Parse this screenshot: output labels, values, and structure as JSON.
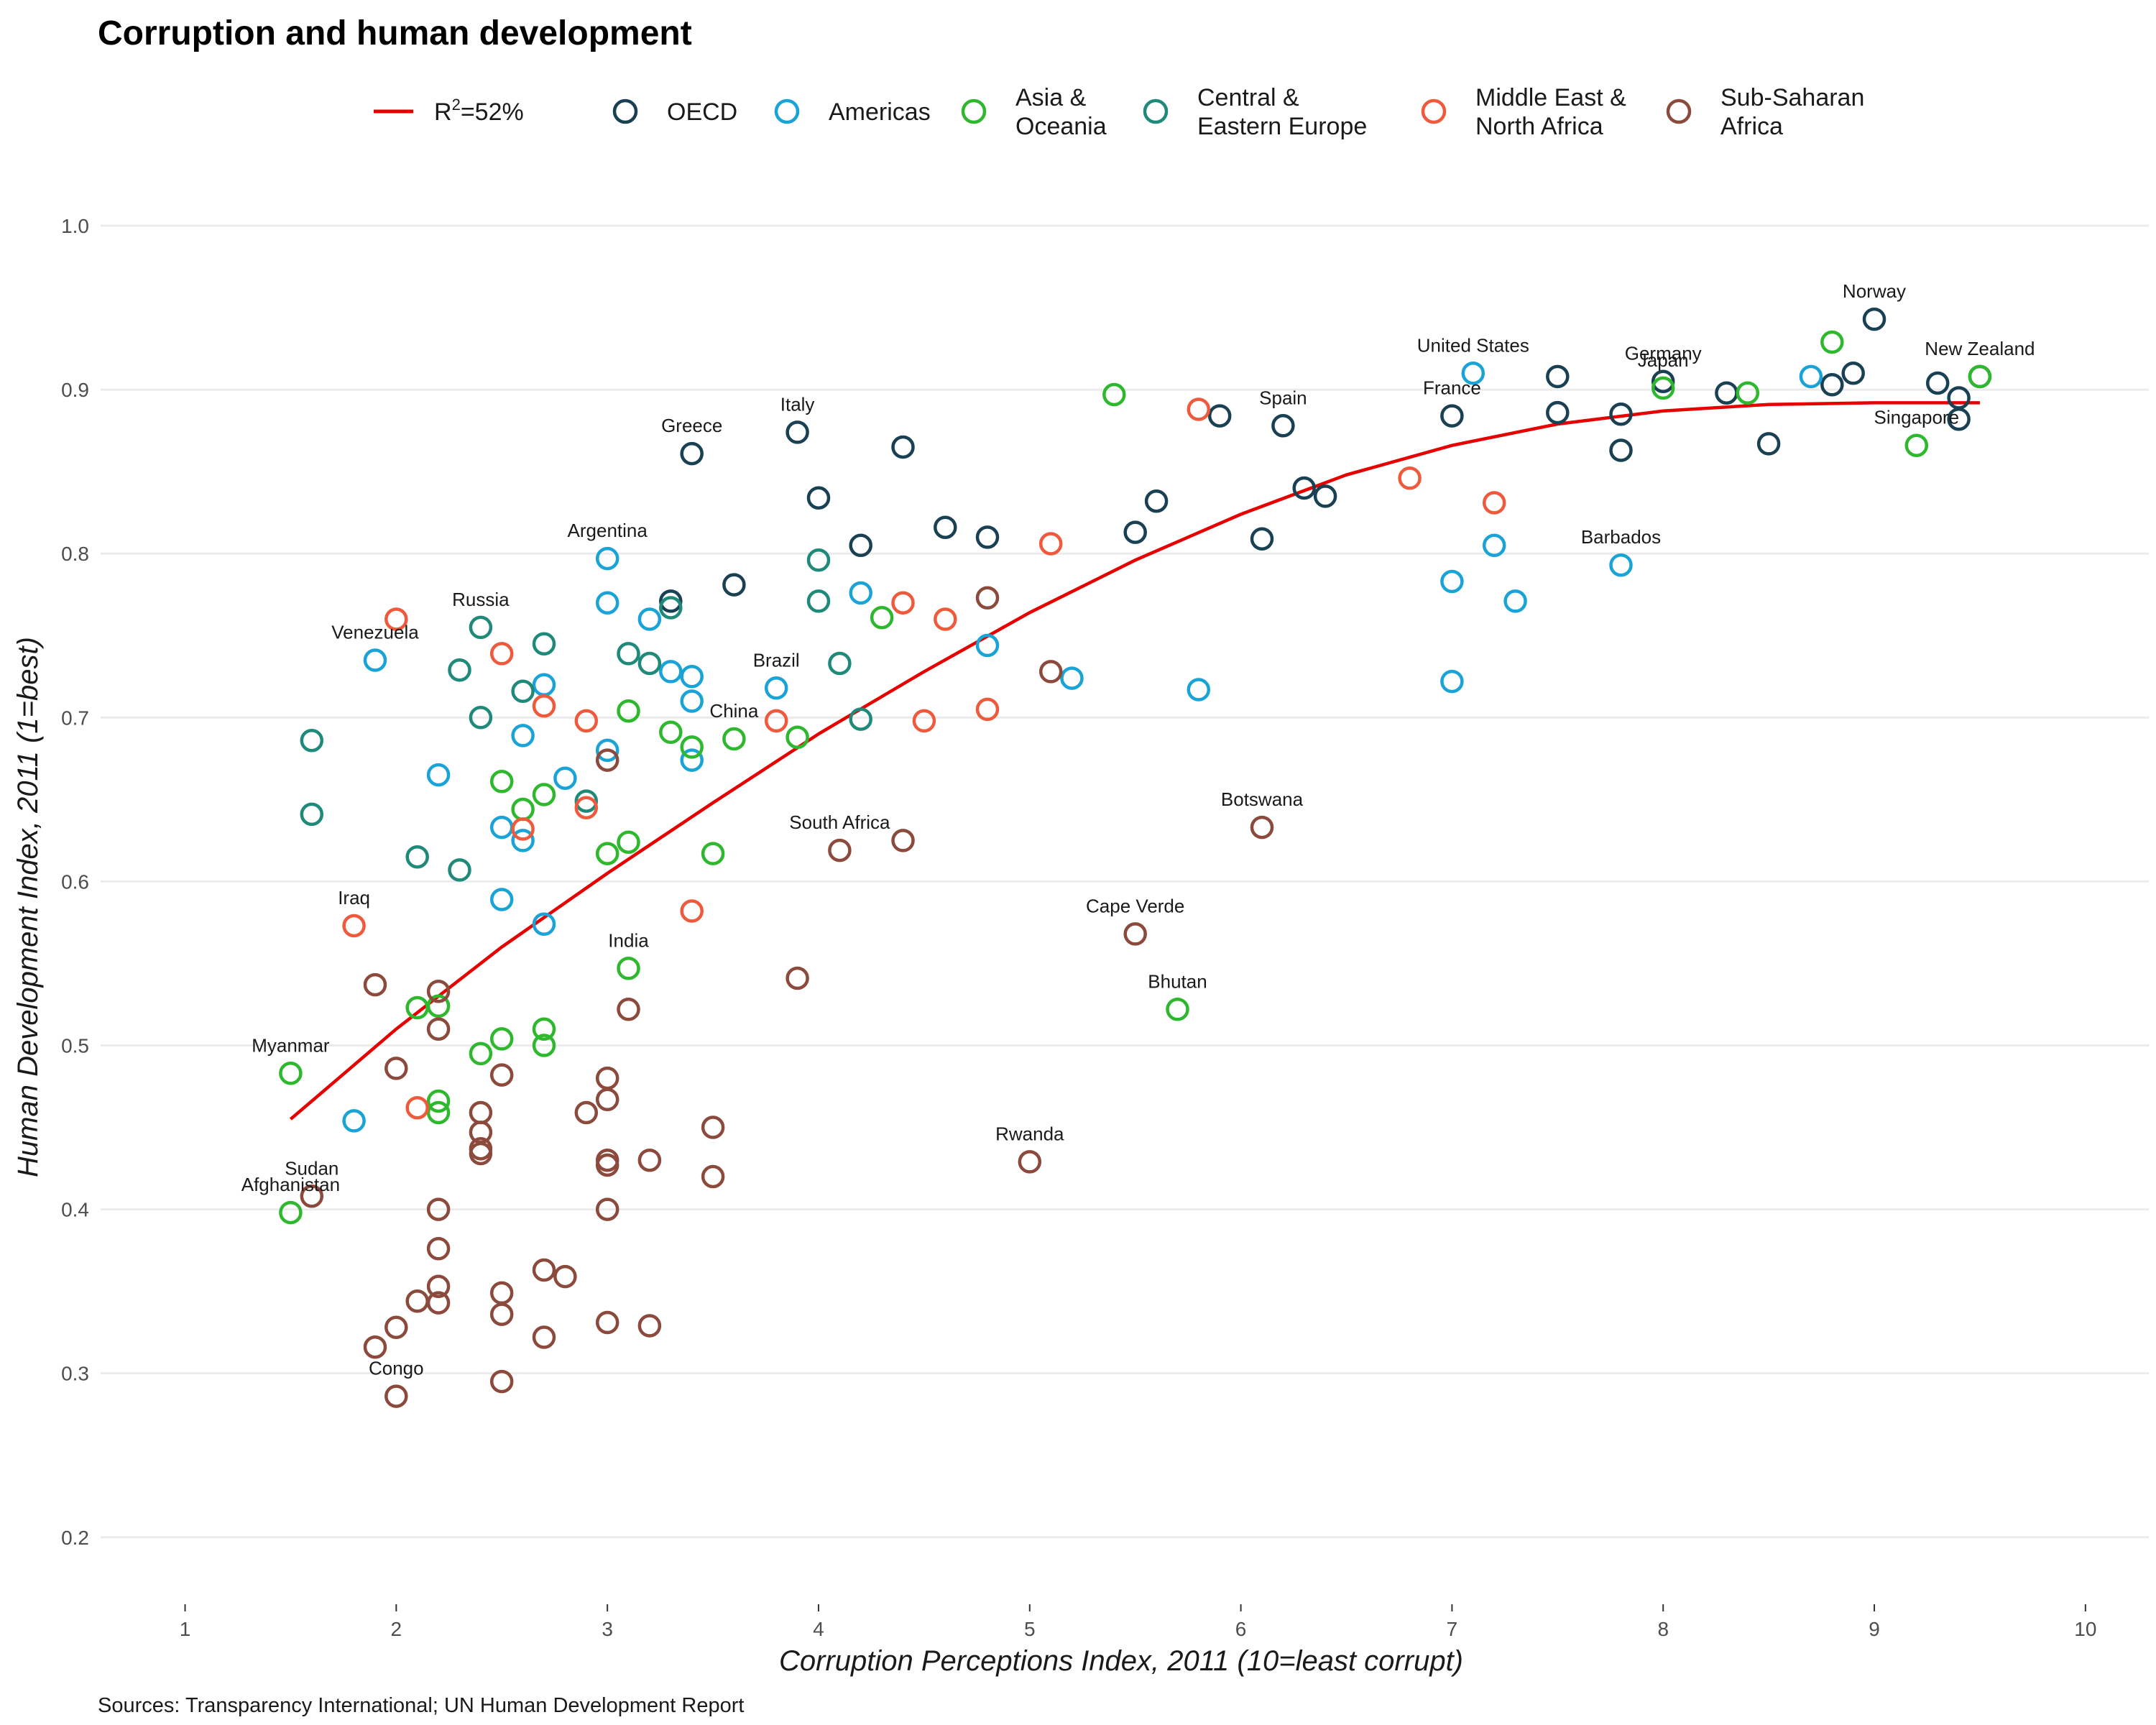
{
  "chart_data": {
    "type": "scatter",
    "title": "Corruption and human development",
    "xlabel": "Corruption Perceptions Index, 2011 (10=least corrupt)",
    "ylabel": "Human Development Index, 2011 (1=best)",
    "caption": "Sources: Transparency International; UN Human Development Report",
    "xlim": [
      0.6,
      10.3
    ],
    "ylim": [
      0.16,
      1.05
    ],
    "x_ticks": [
      "1",
      "2",
      "3",
      "4",
      "5",
      "6",
      "7",
      "8",
      "9",
      "10"
    ],
    "x_tick_values": [
      1,
      2,
      3,
      4,
      5,
      6,
      7,
      8,
      9,
      10
    ],
    "y_ticks": [
      "0.2",
      "0.3",
      "0.4",
      "0.5",
      "0.6",
      "0.7",
      "0.8",
      "0.9",
      "1.0"
    ],
    "y_tick_values": [
      0.2,
      0.3,
      0.4,
      0.5,
      0.6,
      0.7,
      0.8,
      0.9,
      1.0
    ],
    "grid": "horizontal",
    "legend_position": "top",
    "fit": {
      "label_prefix": "R",
      "label_sup": "2",
      "label_suffix": "=52%",
      "color": "#e60000",
      "points": [
        [
          1.5,
          0.455
        ],
        [
          2,
          0.51
        ],
        [
          2.5,
          0.56
        ],
        [
          3,
          0.605
        ],
        [
          3.5,
          0.648
        ],
        [
          4,
          0.69
        ],
        [
          4.5,
          0.728
        ],
        [
          5,
          0.764
        ],
        [
          5.5,
          0.796
        ],
        [
          6,
          0.824
        ],
        [
          6.5,
          0.848
        ],
        [
          7,
          0.866
        ],
        [
          7.5,
          0.879
        ],
        [
          8,
          0.887
        ],
        [
          8.5,
          0.891
        ],
        [
          9,
          0.892
        ],
        [
          9.5,
          0.892
        ]
      ]
    },
    "series": [
      {
        "name": "OECD",
        "legend_label": [
          "OECD"
        ],
        "color": "#1a4054",
        "points": [
          [
            9.5,
            0.908
          ],
          [
            9,
            0.943
          ],
          [
            8.9,
            0.91
          ],
          [
            8.8,
            0.903
          ],
          [
            9.3,
            0.904
          ],
          [
            9.4,
            0.895
          ],
          [
            9.4,
            0.882
          ],
          [
            8.3,
            0.898
          ],
          [
            8.5,
            0.867
          ],
          [
            8,
            0.905
          ],
          [
            7.8,
            0.885
          ],
          [
            7.8,
            0.863
          ],
          [
            7.5,
            0.908
          ],
          [
            7.5,
            0.886
          ],
          [
            7,
            0.884
          ],
          [
            6.4,
            0.835
          ],
          [
            6.3,
            0.84
          ],
          [
            6.2,
            0.878
          ],
          [
            6.1,
            0.809
          ],
          [
            5.9,
            0.884
          ],
          [
            5.6,
            0.832
          ],
          [
            5.5,
            0.813
          ],
          [
            4.8,
            0.81
          ],
          [
            4.6,
            0.816
          ],
          [
            4.4,
            0.865
          ],
          [
            4.2,
            0.805
          ],
          [
            4,
            0.834
          ],
          [
            3.9,
            0.874
          ],
          [
            3.6,
            0.781
          ],
          [
            3.4,
            0.861
          ],
          [
            3.3,
            0.771
          ]
        ]
      },
      {
        "name": "Americas",
        "legend_label": [
          "Americas"
        ],
        "color": "#1aa3d6",
        "points": [
          [
            8.7,
            0.908
          ],
          [
            7.1,
            0.91
          ],
          [
            7.8,
            0.793
          ],
          [
            7.2,
            0.805
          ],
          [
            7,
            0.783
          ],
          [
            7.3,
            0.771
          ],
          [
            7,
            0.722
          ],
          [
            5.8,
            0.717
          ],
          [
            5.2,
            0.724
          ],
          [
            4.8,
            0.744
          ],
          [
            4.2,
            0.776
          ],
          [
            3.8,
            0.718
          ],
          [
            3.4,
            0.725
          ],
          [
            3.4,
            0.71
          ],
          [
            3.4,
            0.674
          ],
          [
            3.3,
            0.728
          ],
          [
            3.2,
            0.76
          ],
          [
            3,
            0.797
          ],
          [
            3,
            0.77
          ],
          [
            3,
            0.68
          ],
          [
            2.8,
            0.663
          ],
          [
            2.7,
            0.72
          ],
          [
            2.7,
            0.574
          ],
          [
            2.6,
            0.689
          ],
          [
            2.6,
            0.625
          ],
          [
            2.5,
            0.633
          ],
          [
            2.5,
            0.589
          ],
          [
            2.2,
            0.665
          ],
          [
            1.9,
            0.735
          ],
          [
            1.8,
            0.454
          ]
        ]
      },
      {
        "name": "Asia & Oceania",
        "legend_label": [
          "Asia &",
          "Oceania"
        ],
        "color": "#2eb82e",
        "points": [
          [
            9.5,
            0.908
          ],
          [
            9.2,
            0.866
          ],
          [
            8.8,
            0.929
          ],
          [
            8.4,
            0.898
          ],
          [
            8,
            0.901
          ],
          [
            5.7,
            0.522
          ],
          [
            5.4,
            0.897
          ],
          [
            4.3,
            0.761
          ],
          [
            3.9,
            0.688
          ],
          [
            3.6,
            0.687
          ],
          [
            3.5,
            0.617
          ],
          [
            3.4,
            0.682
          ],
          [
            3.3,
            0.691
          ],
          [
            3.1,
            0.704
          ],
          [
            3.1,
            0.547
          ],
          [
            3.1,
            0.624
          ],
          [
            3,
            0.617
          ],
          [
            2.7,
            0.653
          ],
          [
            2.7,
            0.51
          ],
          [
            2.7,
            0.5
          ],
          [
            2.6,
            0.644
          ],
          [
            2.5,
            0.661
          ],
          [
            2.5,
            0.504
          ],
          [
            2.4,
            0.495
          ],
          [
            2.2,
            0.524
          ],
          [
            2.2,
            0.466
          ],
          [
            2.2,
            0.459
          ],
          [
            2.1,
            0.523
          ],
          [
            1.5,
            0.483
          ],
          [
            1.5,
            0.398
          ]
        ]
      },
      {
        "name": "Central & Eastern Europe",
        "legend_label": [
          "Central &",
          "Eastern Europe"
        ],
        "color": "#1f8a7a",
        "points": [
          [
            4.2,
            0.699
          ],
          [
            4.1,
            0.733
          ],
          [
            4,
            0.796
          ],
          [
            4,
            0.771
          ],
          [
            3.3,
            0.767
          ],
          [
            3.2,
            0.733
          ],
          [
            3.1,
            0.739
          ],
          [
            2.9,
            0.649
          ],
          [
            2.7,
            0.745
          ],
          [
            2.6,
            0.716
          ],
          [
            2.4,
            0.755
          ],
          [
            2.4,
            0.7
          ],
          [
            2.3,
            0.729
          ],
          [
            2.3,
            0.607
          ],
          [
            2.1,
            0.615
          ],
          [
            1.6,
            0.686
          ],
          [
            1.6,
            0.641
          ]
        ]
      },
      {
        "name": "Middle East & North Africa",
        "legend_label": [
          "Middle East &",
          "North Africa"
        ],
        "color": "#f05a3c",
        "points": [
          [
            6.8,
            0.846
          ],
          [
            7.2,
            0.831
          ],
          [
            5.8,
            0.888
          ],
          [
            5.1,
            0.806
          ],
          [
            4.8,
            0.705
          ],
          [
            4.6,
            0.76
          ],
          [
            4.5,
            0.698
          ],
          [
            4.4,
            0.77
          ],
          [
            3.8,
            0.698
          ],
          [
            3.4,
            0.582
          ],
          [
            2.9,
            0.698
          ],
          [
            2.9,
            0.645
          ],
          [
            2.7,
            0.707
          ],
          [
            2.6,
            0.632
          ],
          [
            2.5,
            0.739
          ],
          [
            2.1,
            0.462
          ],
          [
            2,
            0.76
          ],
          [
            1.8,
            0.573
          ]
        ]
      },
      {
        "name": "Sub-Saharan Africa",
        "legend_label": [
          "Sub-Saharan",
          "Africa"
        ],
        "color": "#8b4a3c",
        "points": [
          [
            6.1,
            0.633
          ],
          [
            5.5,
            0.568
          ],
          [
            5.1,
            0.728
          ],
          [
            5,
            0.429
          ],
          [
            4.8,
            0.773
          ],
          [
            4.4,
            0.625
          ],
          [
            4.1,
            0.619
          ],
          [
            3.9,
            0.541
          ],
          [
            3.5,
            0.45
          ],
          [
            3.5,
            0.42
          ],
          [
            3.2,
            0.43
          ],
          [
            3.2,
            0.329
          ],
          [
            3.1,
            0.522
          ],
          [
            3,
            0.674
          ],
          [
            3,
            0.48
          ],
          [
            3,
            0.467
          ],
          [
            3,
            0.43
          ],
          [
            3,
            0.427
          ],
          [
            3,
            0.4
          ],
          [
            3,
            0.331
          ],
          [
            2.9,
            0.459
          ],
          [
            2.8,
            0.359
          ],
          [
            2.7,
            0.363
          ],
          [
            2.7,
            0.322
          ],
          [
            2.5,
            0.482
          ],
          [
            2.5,
            0.349
          ],
          [
            2.5,
            0.336
          ],
          [
            2.5,
            0.295
          ],
          [
            2.4,
            0.459
          ],
          [
            2.4,
            0.447
          ],
          [
            2.4,
            0.437
          ],
          [
            2.4,
            0.434
          ],
          [
            2.2,
            0.533
          ],
          [
            2.2,
            0.51
          ],
          [
            2.2,
            0.4
          ],
          [
            2.2,
            0.376
          ],
          [
            2.2,
            0.353
          ],
          [
            2.2,
            0.343
          ],
          [
            2.1,
            0.344
          ],
          [
            2,
            0.486
          ],
          [
            2,
            0.328
          ],
          [
            2,
            0.286
          ],
          [
            1.9,
            0.537
          ],
          [
            1.9,
            0.316
          ],
          [
            1.6,
            0.408
          ]
        ]
      }
    ],
    "annotations": [
      {
        "text": "Norway",
        "x": 9.0,
        "y": 0.943
      },
      {
        "text": "New Zealand",
        "x": 9.5,
        "y": 0.908
      },
      {
        "text": "Singapore",
        "x": 9.2,
        "y": 0.866
      },
      {
        "text": "Germany",
        "x": 8.0,
        "y": 0.905
      },
      {
        "text": "Japan",
        "x": 8.0,
        "y": 0.901
      },
      {
        "text": "United States",
        "x": 7.1,
        "y": 0.91
      },
      {
        "text": "France",
        "x": 7.0,
        "y": 0.884
      },
      {
        "text": "Barbados",
        "x": 7.8,
        "y": 0.793
      },
      {
        "text": "Spain",
        "x": 6.2,
        "y": 0.878
      },
      {
        "text": "Botswana",
        "x": 6.1,
        "y": 0.633
      },
      {
        "text": "Cape Verde",
        "x": 5.5,
        "y": 0.568
      },
      {
        "text": "Bhutan",
        "x": 5.7,
        "y": 0.522
      },
      {
        "text": "Rwanda",
        "x": 5.0,
        "y": 0.429
      },
      {
        "text": "South Africa",
        "x": 4.1,
        "y": 0.619
      },
      {
        "text": "Italy",
        "x": 3.9,
        "y": 0.874
      },
      {
        "text": "Greece",
        "x": 3.4,
        "y": 0.861
      },
      {
        "text": "Brazil",
        "x": 3.8,
        "y": 0.718
      },
      {
        "text": "China",
        "x": 3.6,
        "y": 0.687
      },
      {
        "text": "Argentina",
        "x": 3.0,
        "y": 0.797
      },
      {
        "text": "India",
        "x": 3.1,
        "y": 0.547
      },
      {
        "text": "Russia",
        "x": 2.4,
        "y": 0.755
      },
      {
        "text": "Venezuela",
        "x": 1.9,
        "y": 0.735
      },
      {
        "text": "Iraq",
        "x": 1.8,
        "y": 0.573
      },
      {
        "text": "Myanmar",
        "x": 1.5,
        "y": 0.483
      },
      {
        "text": "Sudan",
        "x": 1.6,
        "y": 0.408
      },
      {
        "text": "Afghanistan",
        "x": 1.5,
        "y": 0.398
      },
      {
        "text": "Congo",
        "x": 2.0,
        "y": 0.286
      }
    ]
  }
}
